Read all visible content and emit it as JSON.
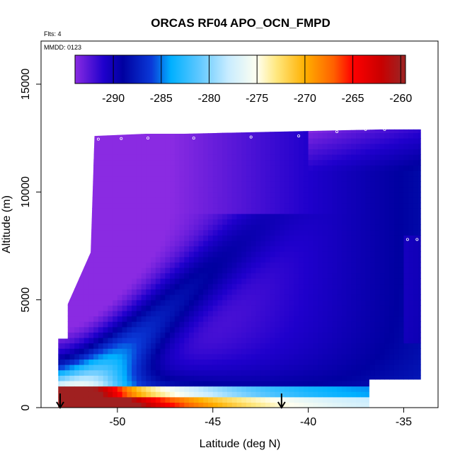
{
  "chart_data": {
    "type": "heatmap",
    "title": "ORCAS RF04 APO_OCN_FMPD",
    "annotations": {
      "flights": "Flts: 4",
      "date": "MMDD: 0123"
    },
    "xlabel": "Latitude (deg N)",
    "ylabel": "Altitude (m)",
    "xlim": [
      -54,
      -33.2
    ],
    "ylim": [
      0,
      17000
    ],
    "x_ticks": [
      -50,
      -45,
      -40,
      -35
    ],
    "x_tick_labels": [
      "-50",
      "-45",
      "-40",
      "-35"
    ],
    "y_ticks": [
      0,
      5000,
      10000,
      15000
    ],
    "y_tick_labels": [
      "0",
      "5000",
      "10000",
      "15000"
    ],
    "colorbar": {
      "range": [
        -294,
        -259.5
      ],
      "ticks": [
        -290,
        -285,
        -280,
        -275,
        -270,
        -265,
        -260
      ],
      "tick_labels": [
        "-290",
        "-285",
        "-280",
        "-275",
        "-270",
        "-265",
        "-260"
      ],
      "stops": [
        {
          "value": -294,
          "color": "#8a2be2"
        },
        {
          "value": -291,
          "color": "#1f00cc"
        },
        {
          "value": -289,
          "color": "#0000a0"
        },
        {
          "value": -286,
          "color": "#0a3ad8"
        },
        {
          "value": -284,
          "color": "#00b0ff"
        },
        {
          "value": -281,
          "color": "#60c8ff"
        },
        {
          "value": -278,
          "color": "#c8ecff"
        },
        {
          "value": -275,
          "color": "#fffff0"
        },
        {
          "value": -273,
          "color": "#ffe880"
        },
        {
          "value": -270,
          "color": "#ffb000"
        },
        {
          "value": -267,
          "color": "#ff6000"
        },
        {
          "value": -265,
          "color": "#ff0000"
        },
        {
          "value": -262,
          "color": "#c80000"
        },
        {
          "value": -260,
          "color": "#a02020"
        }
      ]
    },
    "curtain": {
      "lat_edges": [
        -53.1,
        -53.1,
        -52.6,
        -52.6,
        -51.4,
        -51.2,
        -48.5,
        -46.5,
        -41.5,
        -36.2,
        -36.0,
        -34.1
      ],
      "alt_top": [
        1000,
        3200,
        3200,
        4800,
        7200,
        12600,
        12700,
        12700,
        12800,
        12900,
        12900,
        12900
      ],
      "lat_bottom_left": -53.1,
      "lat_bottom_right": -36.8
    },
    "series": [
      {
        "name": "flight track",
        "lat": [
          -51.0,
          -49.8,
          -48.4,
          -46.0,
          -43.0,
          -40.5,
          -38.5,
          -37.0,
          -36.0,
          -34.8,
          -34.3,
          -34.0
        ],
        "alt": [
          12450,
          12480,
          12500,
          12500,
          12550,
          12600,
          12800,
          12900,
          12900,
          7800,
          7800,
          12900
        ]
      }
    ],
    "markers": [
      {
        "type": "down-arrow",
        "lat": -53.0
      },
      {
        "type": "down-arrow",
        "lat": -41.4
      }
    ]
  }
}
